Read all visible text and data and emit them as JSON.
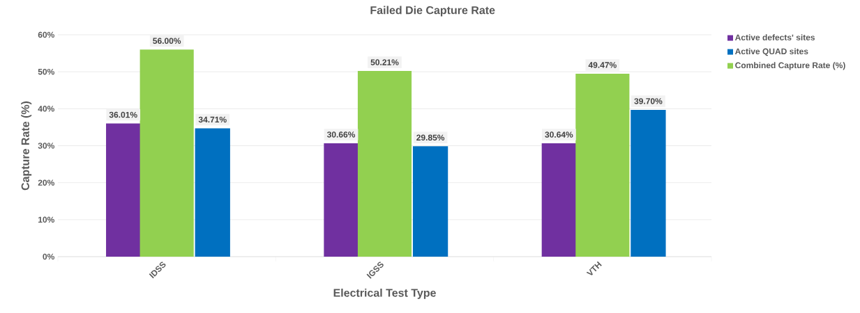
{
  "chart_data": {
    "type": "bar",
    "title": "Failed Die Capture Rate",
    "xlabel": "Electrical Test Type",
    "ylabel": "Capture Rate (%)",
    "categories": [
      "IDSS",
      "IGSS",
      "VTH"
    ],
    "series": [
      {
        "name": "Active defects' sites",
        "color": "#7030a0",
        "values": [
          36.01,
          30.66,
          30.64
        ],
        "value_labels": [
          "36.01%",
          "30.66%",
          "30.64%"
        ]
      },
      {
        "name": "Active QUAD sites",
        "color": "#0070c0",
        "values": [
          34.71,
          29.85,
          39.7
        ],
        "value_labels": [
          "34.71%",
          "29.85%",
          "39.70%"
        ]
      },
      {
        "name": "Combined Capture Rate (%)",
        "color": "#92d050",
        "values": [
          56.0,
          50.21,
          49.47
        ],
        "value_labels": [
          "56.00%",
          "50.21%",
          "49.47%"
        ]
      }
    ],
    "ylim": [
      0,
      60
    ],
    "yticks": [
      {
        "value": 0,
        "label": "0%"
      },
      {
        "value": 10,
        "label": "10%"
      },
      {
        "value": 20,
        "label": "20%"
      },
      {
        "value": 30,
        "label": "30%"
      },
      {
        "value": 40,
        "label": "40%"
      },
      {
        "value": 50,
        "label": "50%"
      },
      {
        "value": 60,
        "label": "60%"
      }
    ],
    "grid": "y",
    "legend": "right"
  }
}
